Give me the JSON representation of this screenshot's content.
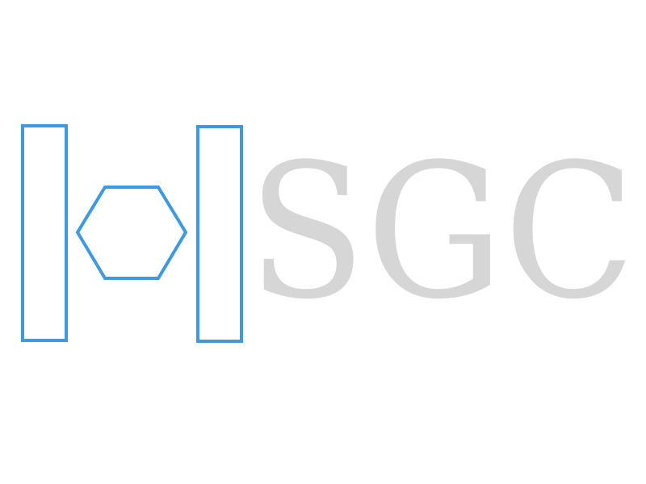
{
  "logo": {
    "text": "SGC",
    "mark_icon": "bracketed-hexagon-icon",
    "colors": {
      "mark": "#3d99e0",
      "text": "#d6d6d6",
      "background": "#ffffff"
    }
  }
}
